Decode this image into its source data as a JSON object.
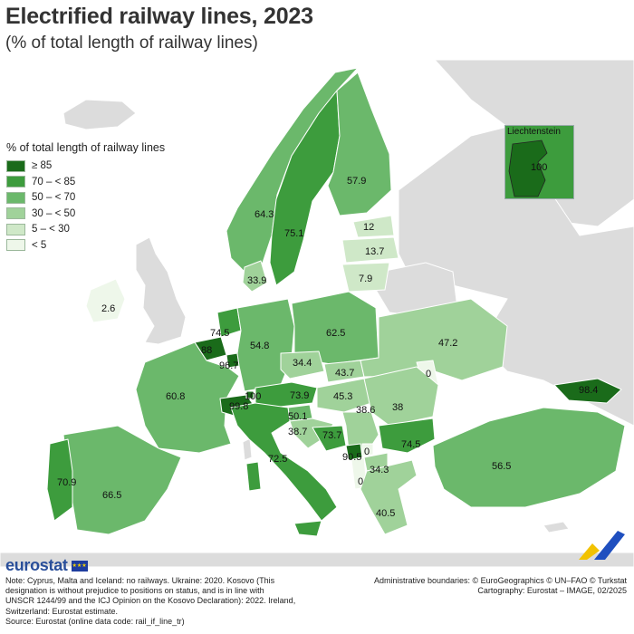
{
  "title": "Electrified railway lines, 2023",
  "subtitle": "(% of total length of railway lines)",
  "legend": {
    "title": "% of total length of railway lines",
    "items": [
      {
        "label": "≥ 85",
        "color": "#1a6b1a"
      },
      {
        "label": "70 – < 85",
        "color": "#3d9c3d"
      },
      {
        "label": "50 – < 70",
        "color": "#6bb86b"
      },
      {
        "label": "30 – < 50",
        "color": "#a0d29a"
      },
      {
        "label": "5 – < 30",
        "color": "#cfe8c8"
      },
      {
        "label": "< 5",
        "color": "#eef7ea"
      }
    ]
  },
  "inset": {
    "title": "Liechtenstein",
    "value": "100"
  },
  "values": {
    "norway": "64.3",
    "sweden": "75.1",
    "finland": "57.9",
    "estonia": "12",
    "latvia": "13.7",
    "lithuania": "7.9",
    "denmark": "33.9",
    "ireland": "2.6",
    "netherlands": "74.5",
    "belgium": "88",
    "luxembourg": "96.7",
    "germany": "54.8",
    "poland": "62.5",
    "czechia": "34.4",
    "slovakia": "43.7",
    "ukraine": "47.2",
    "moldova": "0",
    "georgia": "98.4",
    "france": "60.8",
    "switzerland": "99.8",
    "liechtenstein_main": "100",
    "austria": "73.9",
    "hungary": "45.3",
    "romania": "38",
    "slovenia": "50.1",
    "croatia": "38.7",
    "bosnia": "73.7",
    "serbia": "38.6",
    "bulgaria": "74.5",
    "montenegro": "90.5",
    "kosovo": "0",
    "north_macedonia": "34.3",
    "albania": "0",
    "italy": "72.5",
    "turkey": "56.5",
    "portugal": "70.9",
    "spain": "66.5",
    "greece": "40.5"
  },
  "logo": {
    "text": "eurostat",
    "flag_stars": "★★★"
  },
  "notes": {
    "line1": "Note: Cyprus, Malta and Iceland: no railways. Ukraine: 2020. Kosovo (This",
    "line2": "designation is without prejudice to positions on status, and is in line with",
    "line3": "UNSCR 1244/99 and the ICJ Opinion on the Kosovo Declaration): 2022. Ireland,",
    "line4": "Switzerland: Eurostat estimate.",
    "line5": "Source: Eurostat (online data code: rail_if_line_tr)"
  },
  "credits": {
    "line1": "Administrative boundaries: © EuroGeographics © UN–FAO © Turkstat",
    "line2": "Cartography: Eurostat – IMAGE, 02/2025"
  }
}
